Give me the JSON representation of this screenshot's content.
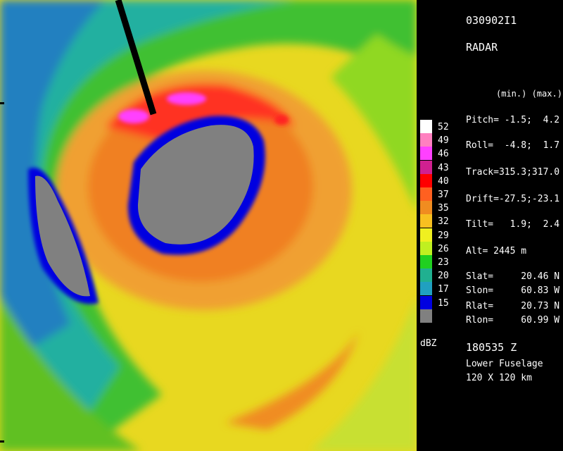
{
  "header": {
    "id": "030902I1",
    "kind": "RADAR"
  },
  "params": {
    "minmax_label": "(min.) (max.)",
    "pitch": "Pitch= -1.5;  4.2",
    "roll": "Roll=  -4.8;  1.7",
    "track": "Track=315.3;317.0",
    "drift": "Drift=-27.5;-23.1",
    "tilt": "Tilt=   1.9;  2.4",
    "alt": "Alt= 2445 m"
  },
  "positions": {
    "slat": "Slat=     20.46 N",
    "slon": "Slon=     60.83 W",
    "rlat": "Rlat=     20.73 N",
    "rlon": "Rlon=     60.99 W"
  },
  "footer": {
    "time": "180535 Z",
    "antenna": "Lower Fuselage",
    "range": "120 X 120 km"
  },
  "legend": {
    "unit": "dBZ",
    "levels": [
      {
        "label": "52",
        "color": "#ffffff"
      },
      {
        "label": "49",
        "color": "#ff80c0"
      },
      {
        "label": "46",
        "color": "#ff40ff"
      },
      {
        "label": "43",
        "color": "#d02090"
      },
      {
        "label": "40",
        "color": "#ff0000"
      },
      {
        "label": "37",
        "color": "#ff6020"
      },
      {
        "label": "35",
        "color": "#f08c20"
      },
      {
        "label": "32",
        "color": "#f8c020"
      },
      {
        "label": "29",
        "color": "#f0f020"
      },
      {
        "label": "26",
        "color": "#c0f020"
      },
      {
        "label": "23",
        "color": "#20d020"
      },
      {
        "label": "20",
        "color": "#20b090"
      },
      {
        "label": "17",
        "color": "#20a0c0"
      },
      {
        "label": "15",
        "color": "#0000e0"
      },
      {
        "label": "",
        "color": "#808080"
      }
    ]
  }
}
